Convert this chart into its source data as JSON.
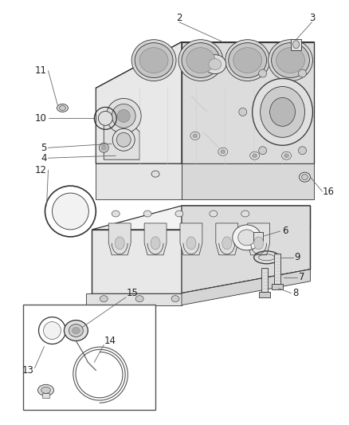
{
  "background_color": "#ffffff",
  "fig_width": 4.38,
  "fig_height": 5.33,
  "dpi": 100,
  "label_fontsize": 8.5,
  "label_color": "#333333",
  "line_color": "#555555",
  "line_color_dark": "#333333",
  "fill_light": "#f2f2f2",
  "fill_mid": "#e0e0e0",
  "fill_dark": "#cccccc",
  "fill_darker": "#b8b8b8"
}
